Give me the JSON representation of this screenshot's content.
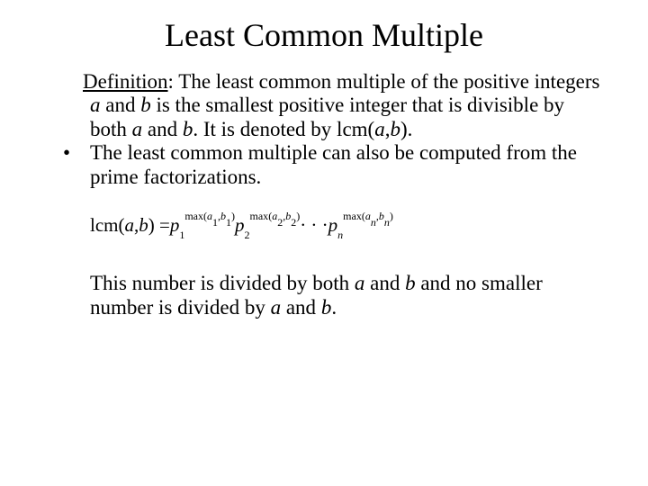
{
  "title": "Least Common Multiple",
  "definition": {
    "label": "Definition",
    "text_parts": {
      "p1": ": The least common multiple of the positive integers ",
      "a1": "a",
      "p2": " and ",
      "b1": "b",
      "p3": " is the smallest  positive integer that is divisible by both ",
      "a2": "a",
      "p4": " and ",
      "b2": "b",
      "p5": ". It is denoted by lcm(",
      "a3": "a",
      "comma": ",",
      "b3": "b",
      "p6": ")."
    }
  },
  "bullet": {
    "mark": "•",
    "text": "The least common multiple can also be computed from the prime factorizations."
  },
  "formula": {
    "lcm": "lcm",
    "open": "(",
    "a": "a",
    "comma": ", ",
    "b": "b",
    "close": ") = ",
    "p": "p",
    "sub1": "1",
    "max": "max",
    "e1a": "a",
    "e1i": "1",
    "e1b": "b",
    "sub2": "2",
    "e2i": "2",
    "dots": " · · · ",
    "subn": "n",
    "eni": "n"
  },
  "closing": {
    "p1": "This number is divided by both ",
    "a1": "a",
    "p2": " and ",
    "b1": "b",
    "p3": " and no smaller number  is divided by ",
    "a2": "a",
    "p4": " and ",
    "b2": "b",
    "p5": "."
  },
  "colors": {
    "background": "#ffffff",
    "text": "#000000"
  },
  "fonts": {
    "family": "Times New Roman",
    "title_size": 36,
    "body_size": 23,
    "formula_size": 21
  }
}
